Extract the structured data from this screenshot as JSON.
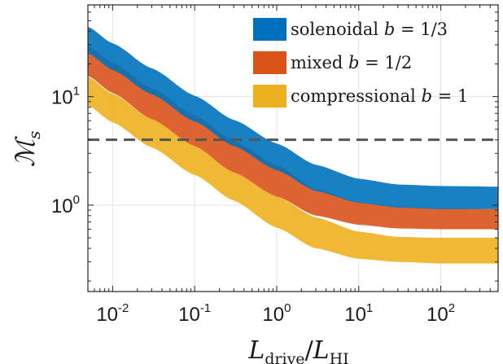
{
  "chart_data": {
    "type": "area",
    "xscale": "log",
    "yscale": "log",
    "xlim": [
      0.005,
      500
    ],
    "ylim": [
      0.16,
      70
    ],
    "grid": true,
    "legend_position": "top-right",
    "xlabel": {
      "main": "L",
      "sub": "drive",
      "sep": "/",
      "main2": "L",
      "sub2": "HI"
    },
    "ylabel": {
      "main": "ℳ",
      "sub": "s"
    },
    "x_ticks": [
      {
        "value": 0.01,
        "base": "10",
        "exp": "-2"
      },
      {
        "value": 0.1,
        "base": "10",
        "exp": "-1"
      },
      {
        "value": 1,
        "base": "10",
        "exp": "0"
      },
      {
        "value": 10,
        "base": "10",
        "exp": "1"
      },
      {
        "value": 100,
        "base": "10",
        "exp": "2"
      }
    ],
    "y_ticks": [
      {
        "value": 1,
        "base": "10",
        "exp": "0"
      },
      {
        "value": 10,
        "base": "10",
        "exp": "1"
      }
    ],
    "reference_line": {
      "y": 4,
      "style": "dashed",
      "color": "#555555"
    },
    "series": [
      {
        "name": "solenoidal b = 1/3",
        "legend_main": "solenoidal ",
        "legend_var": "b",
        "legend_val": " = 1/3",
        "color": "#0072BD",
        "x": [
          0.005,
          0.01,
          0.03,
          0.1,
          0.3,
          1,
          3,
          10,
          30,
          100,
          500
        ],
        "lower": [
          25,
          17.6,
          10.5,
          5.9,
          3.5,
          2.1,
          1.35,
          1.05,
          0.95,
          0.92,
          0.92
        ],
        "upper": [
          44,
          31,
          18.2,
          10.2,
          6.1,
          3.7,
          2.35,
          1.75,
          1.55,
          1.5,
          1.48
        ]
      },
      {
        "name": "mixed b = 1/2",
        "legend_main": "mixed ",
        "legend_var": "b",
        "legend_val": " = 1/2",
        "color": "#D95319",
        "x": [
          0.005,
          0.01,
          0.03,
          0.1,
          0.3,
          1,
          3,
          10,
          30,
          100,
          500
        ],
        "lower": [
          15.5,
          10.8,
          6.2,
          3.5,
          2.0,
          1.2,
          0.8,
          0.66,
          0.61,
          0.6,
          0.6
        ],
        "upper": [
          29,
          20.5,
          12,
          6.7,
          3.9,
          2.35,
          1.4,
          1.06,
          0.96,
          0.93,
          0.92
        ]
      },
      {
        "name": "compressional b = 1",
        "legend_main": "compressional ",
        "legend_var": "b",
        "legend_val": " = 1",
        "color": "#EDB120",
        "x": [
          0.005,
          0.01,
          0.03,
          0.1,
          0.3,
          1,
          3,
          10,
          30,
          100,
          500
        ],
        "lower": [
          8.3,
          5.8,
          3.4,
          1.9,
          1.1,
          0.62,
          0.4,
          0.32,
          0.3,
          0.29,
          0.29
        ],
        "upper": [
          15.2,
          10.6,
          6.2,
          3.5,
          2.0,
          1.2,
          0.77,
          0.57,
          0.51,
          0.5,
          0.5
        ]
      }
    ]
  }
}
